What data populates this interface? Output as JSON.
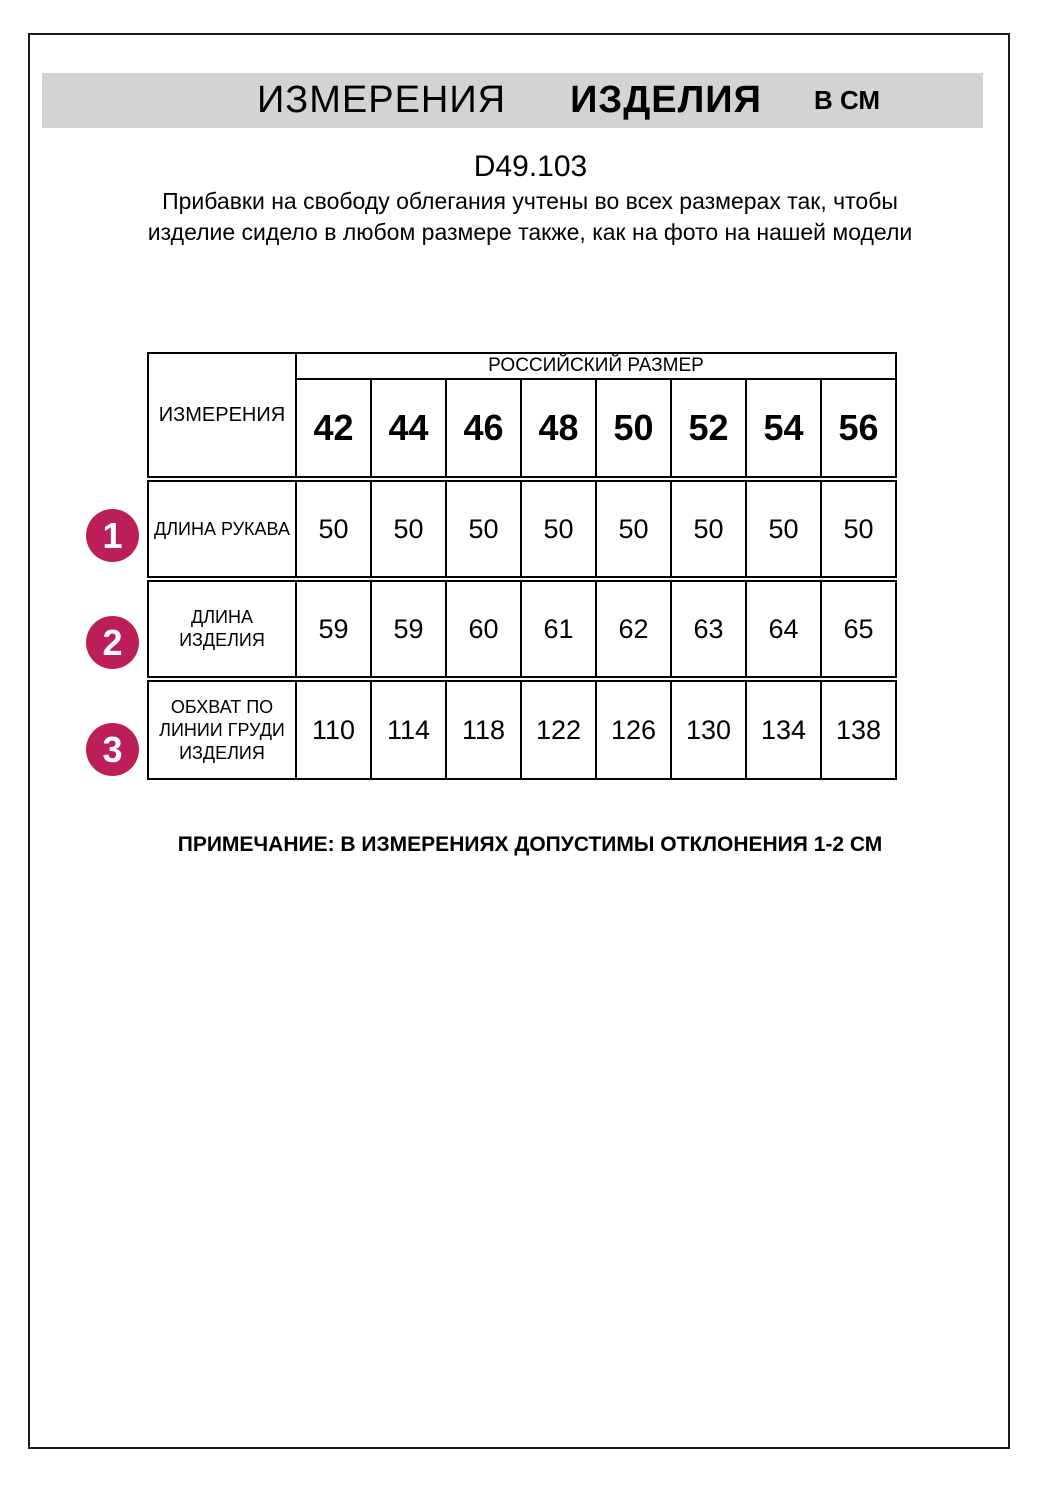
{
  "header": {
    "title_word1": "ИЗМЕРЕНИЯ",
    "title_word2": "ИЗДЕЛИЯ",
    "title_unit": "В СМ"
  },
  "product": {
    "code": "D49.103",
    "description": "Прибавки на свободу облегания учтены во всех размерах так, чтобы изделие сидело в любом размере также, как на фото на нашей модели"
  },
  "table": {
    "measure_header": "ИЗМЕРЕНИЯ",
    "size_header": "РОССИЙСКИЙ РАЗМЕР",
    "sizes": [
      "42",
      "44",
      "46",
      "48",
      "50",
      "52",
      "54",
      "56"
    ],
    "rows": [
      {
        "num": "1",
        "label": "ДЛИНА РУКАВА",
        "values": [
          "50",
          "50",
          "50",
          "50",
          "50",
          "50",
          "50",
          "50"
        ]
      },
      {
        "num": "2",
        "label": "ДЛИНА ИЗДЕЛИЯ",
        "values": [
          "59",
          "59",
          "60",
          "61",
          "62",
          "63",
          "64",
          "65"
        ]
      },
      {
        "num": "3",
        "label": "ОБХВАТ ПО ЛИНИИ ГРУДИ ИЗДЕЛИЯ",
        "values": [
          "110",
          "114",
          "118",
          "122",
          "126",
          "130",
          "134",
          "138"
        ]
      }
    ]
  },
  "note": "ПРИМЕЧАНИЕ: В ИЗМЕРЕНИЯХ ДОПУСТИМЫ ОТКЛОНЕНИЯ 1-2 СМ",
  "colors": {
    "badge": "#bc1e58",
    "band": "#d3d3d3"
  }
}
